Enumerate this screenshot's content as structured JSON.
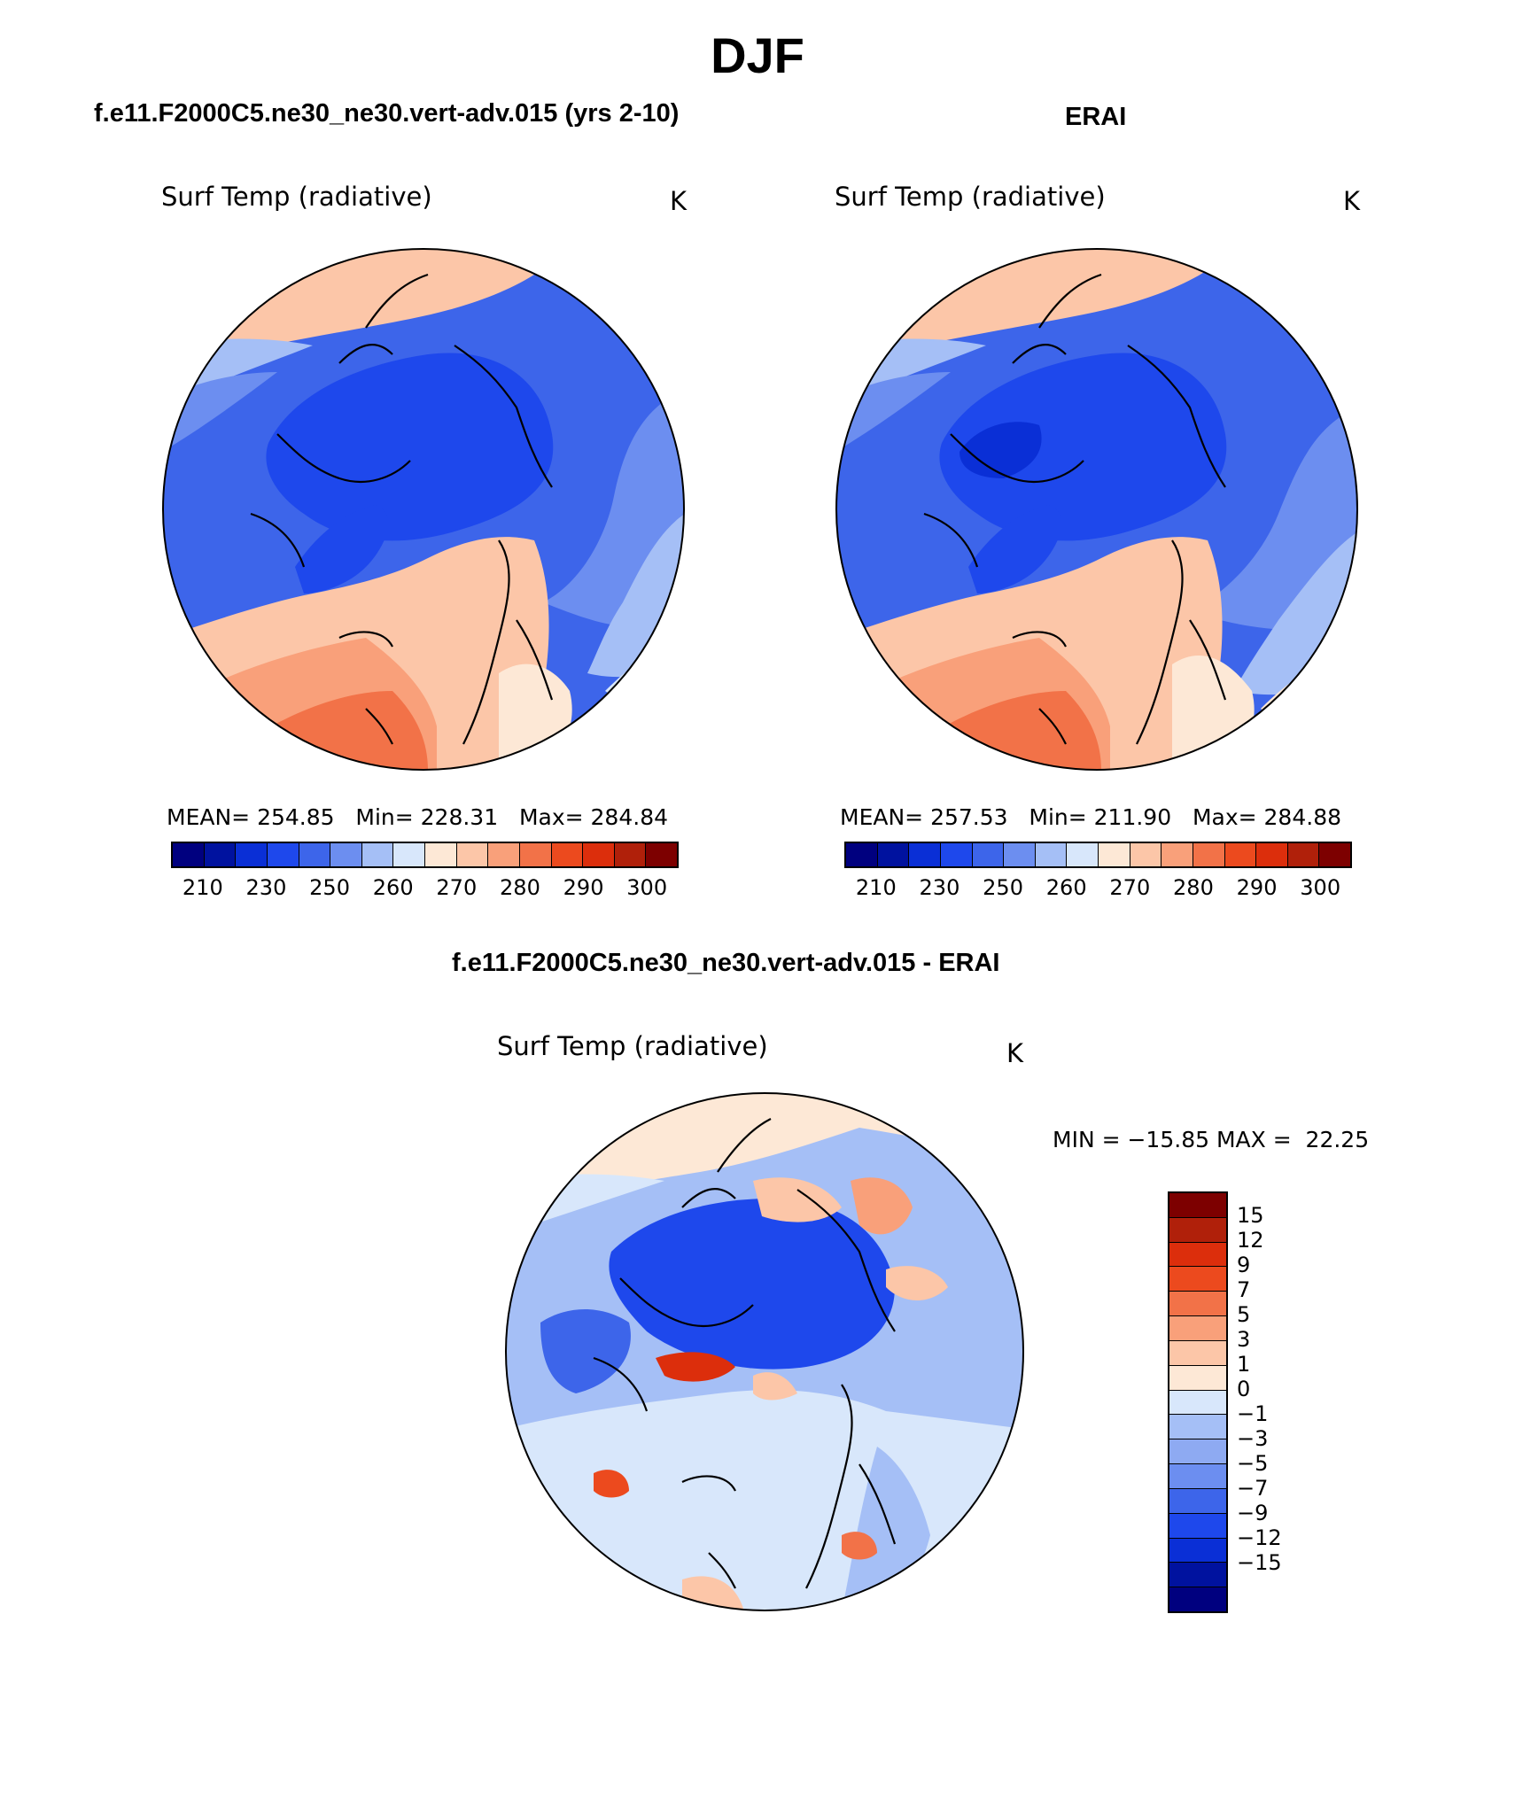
{
  "title": "DJF",
  "panels": [
    {
      "title": "f.e11.F2000C5.ne30_ne30.vert-adv.015 (yrs 2-10)",
      "variable": "Surf Temp (radiative)",
      "units": "K",
      "stats": "MEAN= 254.85   Min= 228.31   Max= 284.84",
      "ticks": [
        "210",
        "230",
        "250",
        "260",
        "270",
        "280",
        "290",
        "300"
      ]
    },
    {
      "title": "ERAI",
      "variable": "Surf Temp (radiative)",
      "units": "K",
      "stats": "MEAN= 257.53   Min= 211.90   Max= 284.88",
      "ticks": [
        "210",
        "230",
        "250",
        "260",
        "270",
        "280",
        "290",
        "300"
      ]
    }
  ],
  "diff": {
    "title": "f.e11.F2000C5.ne30_ne30.vert-adv.015 - ERAI",
    "variable": "Surf Temp (radiative)",
    "units": "K",
    "minmax": "MIN = −15.85 MAX =  22.25",
    "ticks": [
      "15",
      "12",
      "9",
      "7",
      "5",
      "3",
      "1",
      "0",
      "−1",
      "−3",
      "−5",
      "−7",
      "−9",
      "−12",
      "−15"
    ]
  },
  "colors": {
    "abs_scale": [
      "#00007f",
      "#00129f",
      "#0a2fd6",
      "#1e48ec",
      "#3d65ea",
      "#6c8ef0",
      "#a5bff6",
      "#d8e7fb",
      "#fde8d6",
      "#fcc6a8",
      "#f9a07a",
      "#f27248",
      "#ec4a1e",
      "#dc2e0c",
      "#b0200a",
      "#7d0000"
    ],
    "diff_scale": [
      "#7d0000",
      "#b0200a",
      "#dc2e0c",
      "#ec4a1e",
      "#f27248",
      "#f9a07a",
      "#fcc6a8",
      "#fde8d6",
      "#d8e7fb",
      "#a5bff6",
      "#8eaaf2",
      "#6c8ef0",
      "#3d65ea",
      "#1e48ec",
      "#0a2fd6",
      "#00129f",
      "#00007f"
    ]
  }
}
